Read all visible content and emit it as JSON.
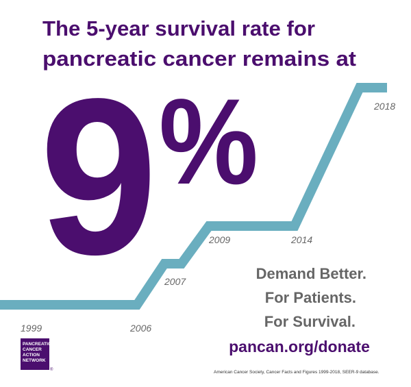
{
  "header": {
    "lines": [
      "The 5-year survival rate for",
      "pancreatic cancer remains at"
    ]
  },
  "big_stat": {
    "number": "9",
    "symbol": "%"
  },
  "timeline": {
    "years": [
      "1999",
      "2006",
      "2007",
      "2009",
      "2014",
      "2018"
    ]
  },
  "slogan": {
    "lines": [
      "Demand Better.",
      "For Patients.",
      "For Survival."
    ]
  },
  "url": "pancan.org/donate",
  "logo": {
    "lines": [
      "PANCREATIC",
      "CANCER",
      "ACTION",
      "NETWORK"
    ],
    "mark": "®"
  },
  "source": "American Cancer Society, Cancer Facts and Figures 1999-2018, SEER-9 database."
}
